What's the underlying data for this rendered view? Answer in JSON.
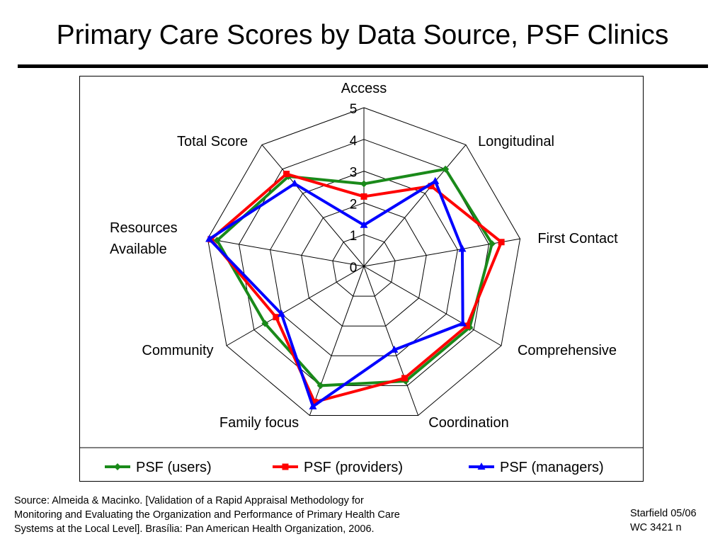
{
  "page": {
    "title": "Primary Care Scores by Data Source, PSF Clinics",
    "source_lines": [
      "Source: Almeida & Macinko. [Validation of a Rapid Appraisal Methodology for",
      "Monitoring and Evaluating the Organization and Performance of Primary Health Care",
      "Systems at the Local Level]. Brasília: Pan American Health Organization, 2006."
    ],
    "credit_lines": [
      "Starfield 05/06",
      "WC 3421 n"
    ]
  },
  "chart_data": {
    "type": "radar",
    "axes": [
      "Access",
      "Longitudinal",
      "First Contact",
      "Comprehensive",
      "Coordination",
      "Family focus",
      "Community",
      "Resources Available",
      "Total Score"
    ],
    "axis_label_lines": [
      [
        "Access"
      ],
      [
        "Longitudinal"
      ],
      [
        "First Contact"
      ],
      [
        "Comprehensive"
      ],
      [
        "Coordination"
      ],
      [
        "Family focus"
      ],
      [
        "Community"
      ],
      [
        "Resources",
        "Available"
      ],
      [
        "Total Score"
      ]
    ],
    "rlim": [
      0,
      5
    ],
    "ticks": [
      0,
      1,
      2,
      3,
      4,
      5
    ],
    "grid": true,
    "legend_position": "bottom",
    "series": [
      {
        "name": "PSF (users)",
        "color": "#1a8a1a",
        "marker": "diamond",
        "values": [
          2.6,
          4.0,
          4.1,
          3.85,
          3.85,
          4.0,
          3.6,
          4.7,
          3.7
        ]
      },
      {
        "name": "PSF (providers)",
        "color": "#ff0000",
        "marker": "square",
        "values": [
          2.2,
          3.3,
          4.4,
          3.75,
          3.75,
          4.55,
          3.2,
          4.9,
          3.8
        ]
      },
      {
        "name": "PSF (managers)",
        "color": "#0000ff",
        "marker": "triangle",
        "values": [
          1.3,
          3.5,
          3.15,
          3.6,
          2.8,
          4.7,
          3.0,
          4.95,
          3.4
        ]
      }
    ]
  }
}
